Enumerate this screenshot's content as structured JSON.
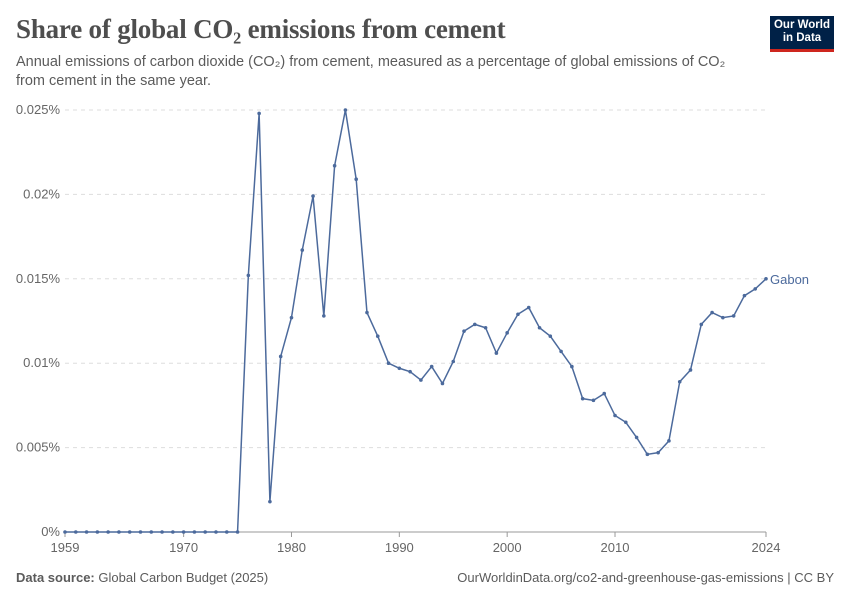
{
  "header": {
    "title": "Share of global CO₂ emissions from cement",
    "subtitle": "Annual emissions of carbon dioxide (CO₂) from cement, measured as a percentage of global emissions of CO₂ from cement in the same year.",
    "logo": "Our World in Data"
  },
  "footer": {
    "source_label": "Data source:",
    "source": "Global Carbon Budget (2025)",
    "link": "OurWorldinData.org/co2-and-greenhouse-gas-emissions | CC BY"
  },
  "chart_data": {
    "type": "line",
    "title": "Share of global CO₂ emissions from cement",
    "ylim": [
      0,
      0.025
    ],
    "xlim": [
      1959,
      2024
    ],
    "yticks": [
      0,
      0.005,
      0.01,
      0.015,
      0.02,
      0.025
    ],
    "ytick_labels": [
      "0%",
      "0.005%",
      "0.01%",
      "0.015%",
      "0.02%",
      "0.025%"
    ],
    "xticks": [
      1959,
      1970,
      1980,
      1990,
      2000,
      2010,
      2024
    ],
    "xtick_labels": [
      "1959",
      "1970",
      "1980",
      "1990",
      "2000",
      "2010",
      "2024"
    ],
    "grid": "horizontal dashed",
    "color": "#4c6a9c",
    "series": [
      {
        "name": "Gabon",
        "x": [
          1959,
          1960,
          1961,
          1962,
          1963,
          1964,
          1965,
          1966,
          1967,
          1968,
          1969,
          1970,
          1971,
          1972,
          1973,
          1974,
          1975,
          1976,
          1977,
          1978,
          1979,
          1980,
          1981,
          1982,
          1983,
          1984,
          1985,
          1986,
          1987,
          1988,
          1989,
          1990,
          1991,
          1992,
          1993,
          1994,
          1995,
          1996,
          1997,
          1998,
          1999,
          2000,
          2001,
          2002,
          2003,
          2004,
          2005,
          2006,
          2007,
          2008,
          2009,
          2010,
          2011,
          2012,
          2013,
          2014,
          2015,
          2016,
          2017,
          2018,
          2019,
          2020,
          2021,
          2022,
          2023,
          2024
        ],
        "values": [
          0,
          0,
          0,
          0,
          0,
          0,
          0,
          0,
          0,
          0,
          0,
          0,
          0,
          0,
          0,
          0,
          0,
          0.0152,
          0.0248,
          0.0018,
          0.0104,
          0.0127,
          0.0167,
          0.0199,
          0.0128,
          0.0217,
          0.025,
          0.0209,
          0.013,
          0.0116,
          0.01,
          0.0097,
          0.0095,
          0.009,
          0.0098,
          0.0088,
          0.0101,
          0.0119,
          0.0123,
          0.0121,
          0.0106,
          0.0118,
          0.0129,
          0.0133,
          0.0121,
          0.0116,
          0.0107,
          0.0098,
          0.0079,
          0.0078,
          0.0082,
          0.0069,
          0.0065,
          0.0056,
          0.0046,
          0.0047,
          0.0054,
          0.0089,
          0.0096,
          0.0123,
          0.013,
          0.0127,
          0.0128,
          0.014,
          0.0144,
          0.015
        ]
      }
    ]
  }
}
